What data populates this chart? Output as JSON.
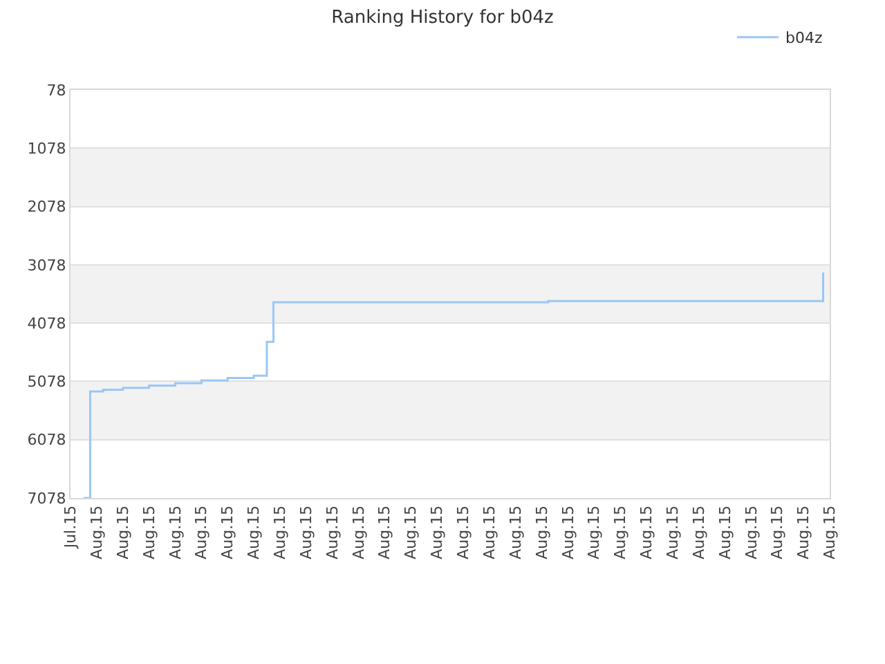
{
  "chart_data": {
    "type": "step",
    "title": "Ranking History for b04z",
    "categories": [
      "Jul.15",
      null,
      null,
      null,
      "Aug.15",
      null,
      null,
      null,
      "Aug.15",
      null,
      null,
      null,
      "Aug.15",
      null,
      null,
      null,
      "Aug.15",
      null,
      null,
      null,
      "Aug.15",
      null,
      null,
      null,
      "Aug.15",
      null,
      null,
      null,
      "Aug.15",
      null,
      null,
      null,
      "Aug.15",
      null,
      null,
      null,
      "Aug.15",
      null,
      null,
      null,
      "Aug.15",
      null,
      null,
      null,
      "Aug.15",
      null,
      null,
      null,
      "Aug.15",
      null,
      null,
      null,
      "Aug.15",
      null,
      null,
      null,
      "Aug.15",
      null,
      null,
      null,
      "Aug.15",
      null,
      null,
      null,
      "Aug.15",
      null,
      null,
      null,
      "Aug.15",
      null,
      null,
      null,
      "Aug.15",
      null,
      null,
      null,
      "Aug.15",
      null,
      null,
      null,
      "Aug.15",
      null,
      null,
      null,
      "Aug.15",
      null,
      null,
      null,
      "Aug.15",
      null,
      null,
      null,
      "Aug.15",
      null,
      null,
      null,
      "Aug.15",
      null,
      null,
      null,
      "Aug.15",
      null,
      null,
      null,
      "Aug.15",
      null,
      null,
      null,
      "Aug.15",
      null,
      null,
      null,
      "Aug.15",
      null,
      null,
      null,
      "Aug.15"
    ],
    "series": [
      {
        "name": "b04z",
        "color": "#99c7f5",
        "values": [
          null,
          null,
          7078,
          5250,
          5250,
          5220,
          5220,
          5220,
          5190,
          5190,
          5190,
          5190,
          5150,
          5150,
          5150,
          5150,
          5110,
          5110,
          5110,
          5110,
          5060,
          5060,
          5060,
          5060,
          5020,
          5020,
          5020,
          5020,
          4980,
          4980,
          4400,
          3720,
          3720,
          3720,
          3720,
          3720,
          3720,
          3720,
          3720,
          3720,
          3720,
          3720,
          3720,
          3720,
          3720,
          3720,
          3720,
          3720,
          3720,
          3720,
          3720,
          3720,
          3720,
          3720,
          3720,
          3720,
          3720,
          3720,
          3720,
          3720,
          3720,
          3720,
          3720,
          3720,
          3720,
          3720,
          3720,
          3720,
          3720,
          3720,
          3720,
          3720,
          3720,
          3700,
          3700,
          3700,
          3700,
          3700,
          3700,
          3700,
          3700,
          3700,
          3700,
          3700,
          3700,
          3700,
          3700,
          3700,
          3700,
          3700,
          3700,
          3700,
          3700,
          3700,
          3700,
          3700,
          3700,
          3700,
          3700,
          3700,
          3700,
          3700,
          3700,
          3700,
          3700,
          3700,
          3700,
          3700,
          3700,
          3700,
          3700,
          3700,
          3700,
          3700,
          3700,
          3210,
          null
        ]
      }
    ],
    "ylim": [
      7078,
      78
    ],
    "yticks": [
      78,
      1078,
      2078,
      3078,
      4078,
      5078,
      6078,
      7078
    ],
    "bands": [
      {
        "axis": "y",
        "from": 1078,
        "to": 2078,
        "color": "#f2f2f2"
      },
      {
        "axis": "y",
        "from": 3078,
        "to": 4078,
        "color": "#f2f2f2"
      },
      {
        "axis": "y",
        "from": 5078,
        "to": 6078,
        "color": "#f2f2f2"
      }
    ],
    "grid": "y",
    "legend": "top right",
    "marker": "none",
    "line_style": "solid"
  }
}
